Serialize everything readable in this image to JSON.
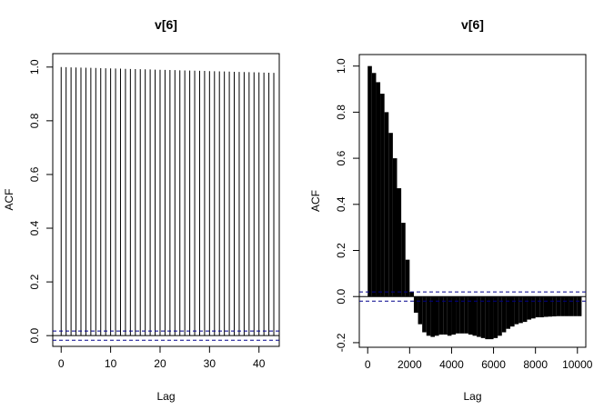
{
  "chart_data": [
    {
      "type": "bar",
      "title": "v[6]",
      "xlabel": "Lag",
      "ylabel": "ACF",
      "xlim": [
        -1.7,
        44.1
      ],
      "ylim": [
        -0.04,
        1.05
      ],
      "xticks": [
        0,
        10,
        20,
        30,
        40
      ],
      "yticks": [
        0.0,
        0.2,
        0.4,
        0.6,
        0.8,
        1.0
      ],
      "ytick_labels": [
        "0.0",
        "0.2",
        "0.4",
        "0.6",
        "0.8",
        "1.0"
      ],
      "confidence_bounds": [
        0.017,
        -0.017
      ],
      "x": [
        0,
        1,
        2,
        3,
        4,
        5,
        6,
        7,
        8,
        9,
        10,
        11,
        12,
        13,
        14,
        15,
        16,
        17,
        18,
        19,
        20,
        21,
        22,
        23,
        24,
        25,
        26,
        27,
        28,
        29,
        30,
        31,
        32,
        33,
        34,
        35,
        36,
        37,
        38,
        39,
        40,
        41,
        42,
        43
      ],
      "values": [
        1.0,
        0.9995,
        0.999,
        0.9985,
        0.998,
        0.9975,
        0.997,
        0.9965,
        0.996,
        0.9955,
        0.995,
        0.9945,
        0.994,
        0.9935,
        0.993,
        0.9925,
        0.992,
        0.9915,
        0.991,
        0.9905,
        0.99,
        0.9895,
        0.989,
        0.9885,
        0.988,
        0.9875,
        0.987,
        0.9865,
        0.986,
        0.9855,
        0.985,
        0.9845,
        0.984,
        0.9835,
        0.983,
        0.9825,
        0.982,
        0.9815,
        0.981,
        0.9805,
        0.98,
        0.9795,
        0.979,
        0.9785
      ],
      "colors": {
        "bars": "#000000",
        "bounds": "#00008b",
        "zero": "#000000"
      }
    },
    {
      "type": "bar",
      "title": "v[6]",
      "xlabel": "Lag",
      "ylabel": "ACF",
      "xlim": [
        -400,
        10400
      ],
      "ylim": [
        -0.22,
        1.05
      ],
      "xticks": [
        0,
        2000,
        4000,
        6000,
        8000,
        10000
      ],
      "yticks": [
        -0.2,
        0.0,
        0.2,
        0.4,
        0.6,
        0.8,
        1.0
      ],
      "ytick_labels": [
        "-0.2",
        "0.0",
        "0.2",
        "0.4",
        "0.6",
        "0.8",
        "1.0"
      ],
      "confidence_bounds": [
        0.02,
        -0.02
      ],
      "x": [
        0,
        200,
        400,
        600,
        800,
        1000,
        1200,
        1400,
        1600,
        1800,
        2000,
        2200,
        2400,
        2600,
        2800,
        3000,
        3200,
        3400,
        3600,
        3800,
        4000,
        4200,
        4400,
        4600,
        4800,
        5000,
        5200,
        5400,
        5600,
        5800,
        6000,
        6200,
        6400,
        6600,
        6800,
        7000,
        7200,
        7400,
        7600,
        7800,
        8000,
        8200,
        8400,
        8600,
        8800,
        9000,
        9200,
        9400,
        9600,
        9800,
        10000
      ],
      "values": [
        1.0,
        0.97,
        0.93,
        0.88,
        0.8,
        0.71,
        0.6,
        0.47,
        0.32,
        0.16,
        0.02,
        -0.07,
        -0.12,
        -0.155,
        -0.17,
        -0.175,
        -0.17,
        -0.165,
        -0.165,
        -0.17,
        -0.165,
        -0.16,
        -0.16,
        -0.16,
        -0.165,
        -0.17,
        -0.175,
        -0.18,
        -0.185,
        -0.185,
        -0.18,
        -0.17,
        -0.155,
        -0.14,
        -0.13,
        -0.12,
        -0.115,
        -0.11,
        -0.1,
        -0.095,
        -0.09,
        -0.09,
        -0.088,
        -0.087,
        -0.086,
        -0.085,
        -0.085,
        -0.085,
        -0.085,
        -0.085,
        -0.085
      ],
      "colors": {
        "bars": "#000000",
        "bounds": "#00008b",
        "zero": "#000000"
      }
    }
  ]
}
